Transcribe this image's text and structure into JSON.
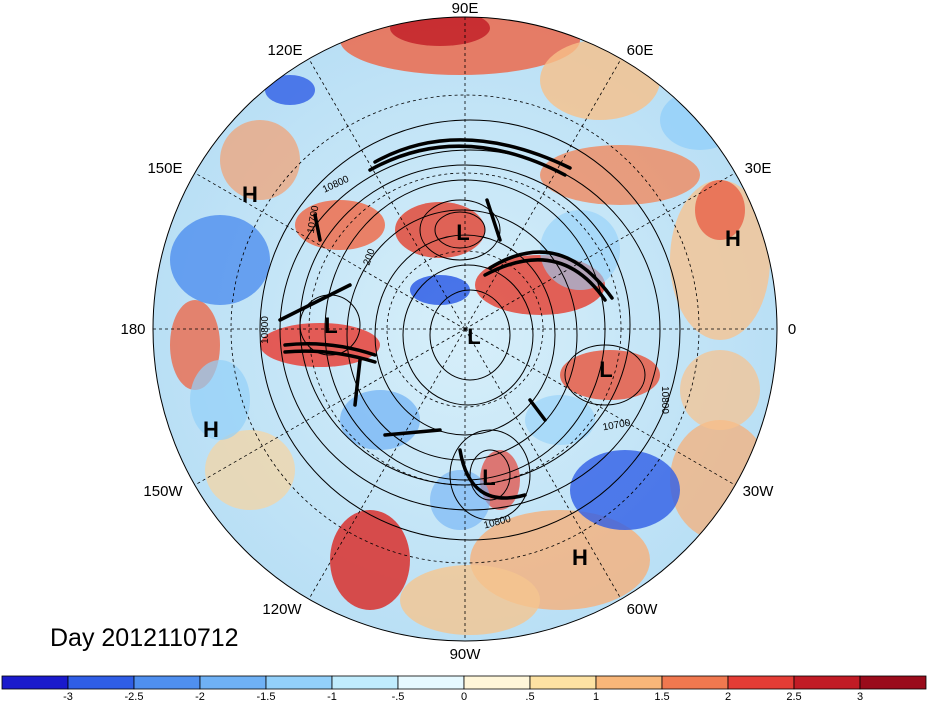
{
  "date_label": "Day 2012110712",
  "longitude_labels": {
    "e90": "90E",
    "e120": "120E",
    "e60": "60E",
    "e150": "150E",
    "e30": "30E",
    "d180": "180",
    "d0": "0",
    "w150": "150W",
    "w30": "30W",
    "w120": "120W",
    "w60": "60W",
    "w90": "90W"
  },
  "pressure_centers": {
    "h1": "H",
    "l1": "L",
    "h2": "H",
    "l2": "L",
    "l3": "L",
    "l4": "L",
    "h3": "H",
    "l5": "L",
    "h4": "H"
  },
  "contour_labels": {
    "c1": "10800",
    "c2": "10700",
    "c3": "10800",
    "c4": "10800",
    "c5": "10700",
    "c6": "10800",
    "c7": "200"
  },
  "colorbar": {
    "ticks": [
      "-3",
      "-2.5",
      "-2",
      "-1.5",
      "-1",
      "-.5",
      "0",
      ".5",
      "1",
      "1.5",
      "2",
      "2.5",
      "3"
    ],
    "colors": [
      "#1a1acc",
      "#2f5ee6",
      "#4f8fef",
      "#6fb1f5",
      "#93d0fa",
      "#c0ecfd",
      "#e6f9ff",
      "#fff6d9",
      "#fde2a3",
      "#f8b679",
      "#f0784f",
      "#e43c35",
      "#c11b25",
      "#9a0b1b"
    ]
  },
  "colors": {
    "border": "#000000",
    "background": "#ffffff"
  }
}
